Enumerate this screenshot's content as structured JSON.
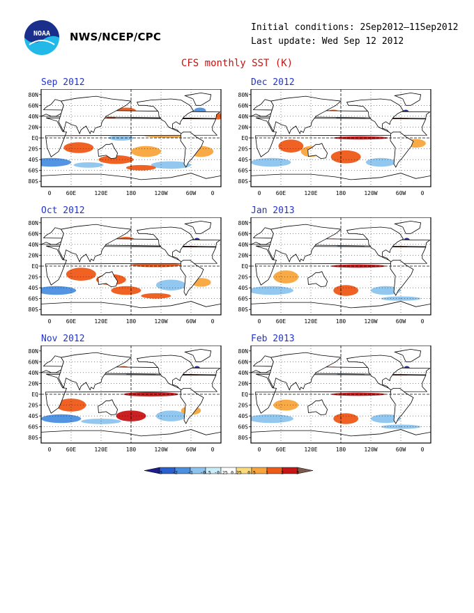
{
  "header": {
    "agency": "NWS/NCEP/CPC",
    "initial_conditions": "Initial conditions: 2Sep2012–11Sep2012",
    "last_update": "Last update: Wed Sep 12 2012",
    "title": "CFS monthly SST (K)",
    "logo_text": "NOAA"
  },
  "axes": {
    "lat_labels": [
      "80N",
      "60N",
      "40N",
      "20N",
      "EQ",
      "20S",
      "40S",
      "60S",
      "80S"
    ],
    "lon_labels": [
      "0",
      "60E",
      "120E",
      "180",
      "120W",
      "60W",
      "0"
    ]
  },
  "panels": [
    {
      "label": "Sep 2012"
    },
    {
      "label": "Dec 2012"
    },
    {
      "label": "Oct 2012"
    },
    {
      "label": "Jan 2013"
    },
    {
      "label": "Nov 2012"
    },
    {
      "label": "Feb 2013"
    }
  ],
  "colorbar": {
    "labels": [
      "-3",
      "-2",
      "-1",
      "-0.5",
      "-0.25",
      "0.25",
      "0.5",
      "1",
      "2",
      "3"
    ],
    "colors": [
      "#1c1c8c",
      "#2a5fcf",
      "#4a8fe0",
      "#8cc4ef",
      "#c8ecf8",
      "#ffffff",
      "#f9d97a",
      "#f7a53c",
      "#ee5a18",
      "#c71616",
      "#7a5a4a"
    ]
  },
  "map_colors": {
    "ocean_neutral": "#ffffff",
    "land": "#ffffff",
    "warm": "#ee5a18",
    "warm_light": "#f7a53c",
    "hot": "#c71616",
    "cool": "#4a8fe0",
    "cool_light": "#8cc4ef",
    "cold": "#2a5fcf",
    "very_cold": "#1c1c8c"
  }
}
